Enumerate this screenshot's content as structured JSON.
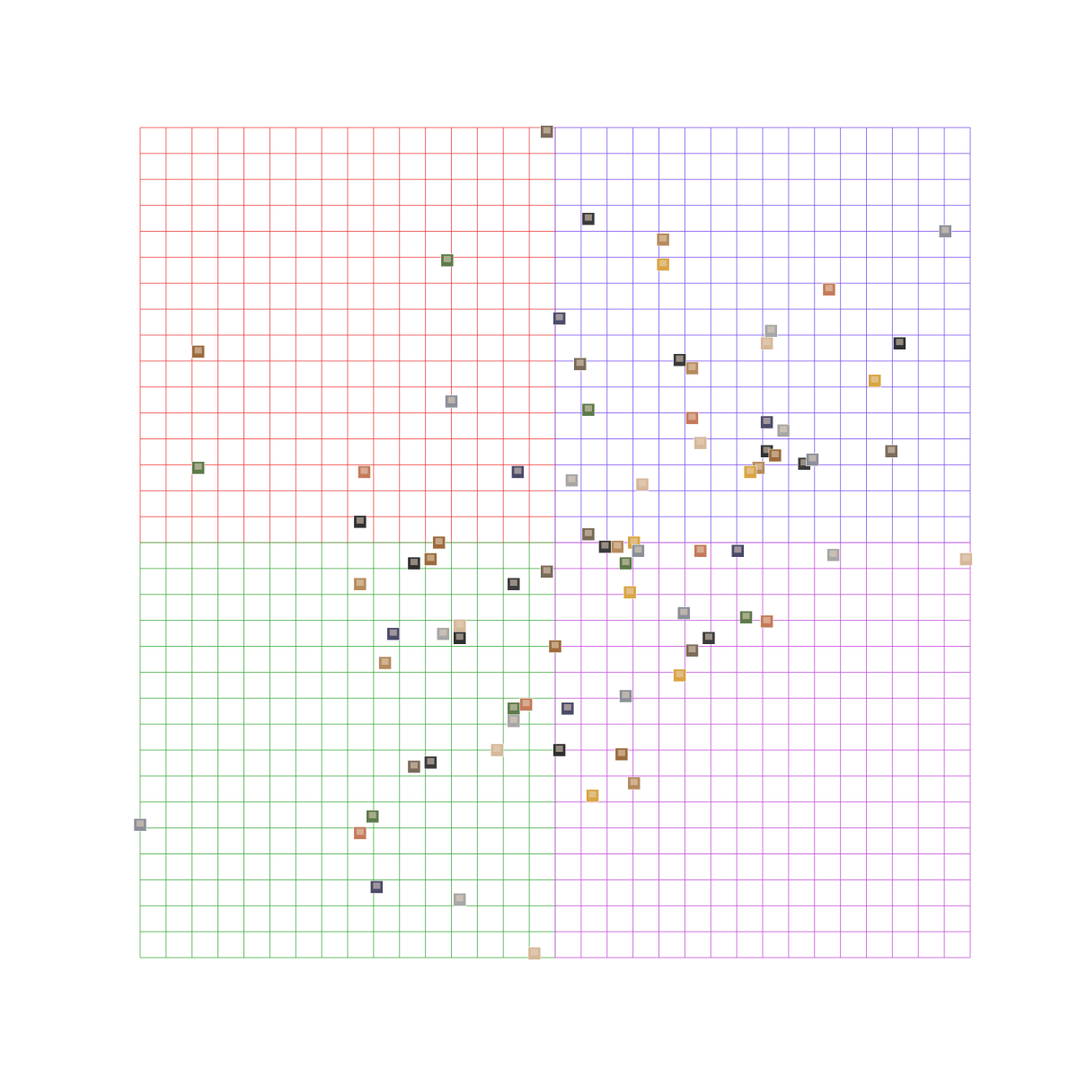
{
  "chart_data": {
    "type": "scatter",
    "title": "",
    "xlabel": "",
    "ylabel": "",
    "xlim": [
      -1,
      1
    ],
    "ylim": [
      -1,
      1
    ],
    "grid": true,
    "grid_divisions": 32,
    "quadrant_colors": {
      "top_left": "#ee3a3a",
      "top_right": "#7a4df0",
      "bottom_left": "#3aa83a",
      "bottom_right": "#c24ad6"
    },
    "points": [
      {
        "x": -0.02,
        "y": 0.99,
        "icon": "avatar-photo"
      },
      {
        "x": 0.08,
        "y": 0.78,
        "icon": "avatar-photo"
      },
      {
        "x": 0.26,
        "y": 0.73,
        "icon": "avatar-photo"
      },
      {
        "x": 0.26,
        "y": 0.67,
        "icon": "avatar-photo"
      },
      {
        "x": 0.94,
        "y": 0.75,
        "icon": "avatar-photo"
      },
      {
        "x": -0.26,
        "y": 0.68,
        "icon": "avatar-photo"
      },
      {
        "x": 0.66,
        "y": 0.61,
        "icon": "avatar-photo"
      },
      {
        "x": 0.01,
        "y": 0.54,
        "icon": "avatar-photo"
      },
      {
        "x": 0.52,
        "y": 0.51,
        "icon": "avatar-photo"
      },
      {
        "x": 0.51,
        "y": 0.48,
        "icon": "avatar-photo"
      },
      {
        "x": 0.83,
        "y": 0.48,
        "icon": "avatar-photo"
      },
      {
        "x": -0.86,
        "y": 0.46,
        "icon": "avatar-photo"
      },
      {
        "x": 0.06,
        "y": 0.43,
        "icon": "avatar-photo"
      },
      {
        "x": 0.3,
        "y": 0.44,
        "icon": "avatar-photo"
      },
      {
        "x": 0.33,
        "y": 0.42,
        "icon": "avatar-photo"
      },
      {
        "x": 0.77,
        "y": 0.39,
        "icon": "avatar-photo"
      },
      {
        "x": -0.25,
        "y": 0.34,
        "icon": "avatar-photo"
      },
      {
        "x": 0.08,
        "y": 0.32,
        "icon": "avatar-photo"
      },
      {
        "x": 0.33,
        "y": 0.3,
        "icon": "avatar-photo"
      },
      {
        "x": 0.51,
        "y": 0.29,
        "icon": "avatar-photo"
      },
      {
        "x": 0.55,
        "y": 0.27,
        "icon": "avatar-photo"
      },
      {
        "x": 0.35,
        "y": 0.24,
        "icon": "avatar-photo"
      },
      {
        "x": 0.51,
        "y": 0.22,
        "icon": "avatar-photo"
      },
      {
        "x": 0.53,
        "y": 0.21,
        "icon": "avatar-photo"
      },
      {
        "x": 0.81,
        "y": 0.22,
        "icon": "avatar-photo"
      },
      {
        "x": 0.6,
        "y": 0.19,
        "icon": "avatar-photo"
      },
      {
        "x": 0.49,
        "y": 0.18,
        "icon": "avatar-photo"
      },
      {
        "x": 0.47,
        "y": 0.17,
        "icon": "avatar-photo"
      },
      {
        "x": 0.62,
        "y": 0.2,
        "icon": "avatar-photo"
      },
      {
        "x": -0.86,
        "y": 0.18,
        "icon": "avatar-photo"
      },
      {
        "x": -0.46,
        "y": 0.17,
        "icon": "avatar-photo"
      },
      {
        "x": -0.09,
        "y": 0.17,
        "icon": "avatar-photo"
      },
      {
        "x": 0.04,
        "y": 0.15,
        "icon": "avatar-photo"
      },
      {
        "x": 0.21,
        "y": 0.14,
        "icon": "avatar-photo"
      },
      {
        "x": -0.47,
        "y": 0.05,
        "icon": "avatar-photo"
      },
      {
        "x": -0.28,
        "y": 0.0,
        "icon": "avatar-photo"
      },
      {
        "x": 0.08,
        "y": 0.02,
        "icon": "avatar-photo"
      },
      {
        "x": 0.12,
        "y": -0.01,
        "icon": "avatar-photo"
      },
      {
        "x": 0.15,
        "y": -0.01,
        "icon": "avatar-photo"
      },
      {
        "x": 0.19,
        "y": 0.0,
        "icon": "avatar-photo"
      },
      {
        "x": 0.2,
        "y": -0.02,
        "icon": "avatar-photo"
      },
      {
        "x": 0.17,
        "y": -0.05,
        "icon": "avatar-photo"
      },
      {
        "x": 0.35,
        "y": -0.02,
        "icon": "avatar-photo"
      },
      {
        "x": 0.44,
        "y": -0.02,
        "icon": "avatar-photo"
      },
      {
        "x": 0.67,
        "y": -0.03,
        "icon": "avatar-photo"
      },
      {
        "x": 0.99,
        "y": -0.04,
        "icon": "avatar-photo"
      },
      {
        "x": -0.34,
        "y": -0.05,
        "icon": "avatar-photo"
      },
      {
        "x": -0.3,
        "y": -0.04,
        "icon": "avatar-photo"
      },
      {
        "x": -0.02,
        "y": -0.07,
        "icon": "avatar-photo"
      },
      {
        "x": -0.1,
        "y": -0.1,
        "icon": "avatar-photo"
      },
      {
        "x": -0.47,
        "y": -0.1,
        "icon": "avatar-photo"
      },
      {
        "x": 0.18,
        "y": -0.12,
        "icon": "avatar-photo"
      },
      {
        "x": 0.31,
        "y": -0.17,
        "icon": "avatar-photo"
      },
      {
        "x": 0.46,
        "y": -0.18,
        "icon": "avatar-photo"
      },
      {
        "x": 0.51,
        "y": -0.19,
        "icon": "avatar-photo"
      },
      {
        "x": -0.39,
        "y": -0.22,
        "icon": "avatar-photo"
      },
      {
        "x": -0.27,
        "y": -0.22,
        "icon": "avatar-photo"
      },
      {
        "x": -0.23,
        "y": -0.2,
        "icon": "avatar-photo"
      },
      {
        "x": -0.23,
        "y": -0.23,
        "icon": "avatar-photo"
      },
      {
        "x": 0.0,
        "y": -0.25,
        "icon": "avatar-photo"
      },
      {
        "x": 0.33,
        "y": -0.26,
        "icon": "avatar-photo"
      },
      {
        "x": 0.37,
        "y": -0.23,
        "icon": "avatar-photo"
      },
      {
        "x": -0.41,
        "y": -0.29,
        "icon": "avatar-photo"
      },
      {
        "x": 0.3,
        "y": -0.32,
        "icon": "avatar-photo"
      },
      {
        "x": 0.17,
        "y": -0.37,
        "icon": "avatar-photo"
      },
      {
        "x": -0.1,
        "y": -0.4,
        "icon": "avatar-photo"
      },
      {
        "x": -0.07,
        "y": -0.39,
        "icon": "avatar-photo"
      },
      {
        "x": 0.03,
        "y": -0.4,
        "icon": "avatar-photo"
      },
      {
        "x": -0.1,
        "y": -0.43,
        "icon": "avatar-photo"
      },
      {
        "x": -0.14,
        "y": -0.5,
        "icon": "avatar-photo"
      },
      {
        "x": 0.01,
        "y": -0.5,
        "icon": "avatar-photo"
      },
      {
        "x": 0.16,
        "y": -0.51,
        "icon": "avatar-photo"
      },
      {
        "x": -0.34,
        "y": -0.54,
        "icon": "avatar-photo"
      },
      {
        "x": -0.3,
        "y": -0.53,
        "icon": "avatar-photo"
      },
      {
        "x": 0.19,
        "y": -0.58,
        "icon": "avatar-photo"
      },
      {
        "x": 0.09,
        "y": -0.61,
        "icon": "avatar-photo"
      },
      {
        "x": -1.0,
        "y": -0.68,
        "icon": "avatar-photo"
      },
      {
        "x": -0.44,
        "y": -0.66,
        "icon": "avatar-photo"
      },
      {
        "x": -0.47,
        "y": -0.7,
        "icon": "avatar-photo"
      },
      {
        "x": -0.43,
        "y": -0.83,
        "icon": "avatar-photo"
      },
      {
        "x": -0.23,
        "y": -0.86,
        "icon": "avatar-photo"
      },
      {
        "x": -0.05,
        "y": -0.99,
        "icon": "avatar-photo"
      }
    ]
  }
}
